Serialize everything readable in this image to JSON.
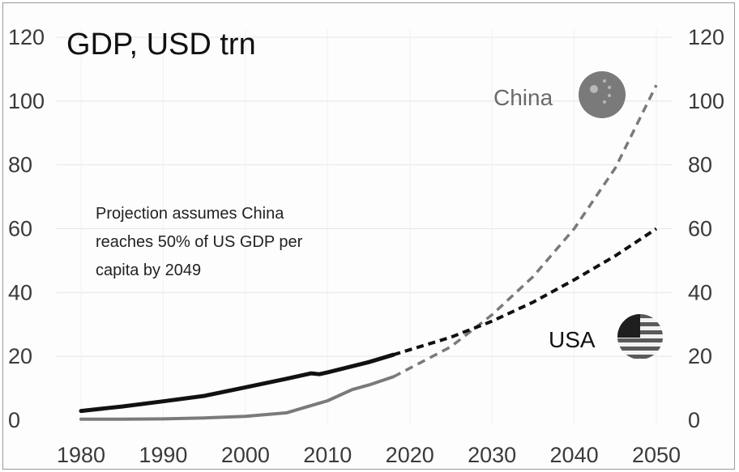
{
  "chart_data": {
    "type": "line",
    "title": "GDP, USD trn",
    "xlim": [
      1980,
      2050
    ],
    "ylim": [
      0,
      120
    ],
    "x_ticks": [
      "1980",
      "1990",
      "2000",
      "2010",
      "2020",
      "2030",
      "2040",
      "2050"
    ],
    "y_ticks": [
      "0",
      "20",
      "40",
      "60",
      "80",
      "100",
      "120"
    ],
    "grid": true,
    "annotation": [
      "Projection assumes China",
      "reaches 50% of US GDP per",
      "capita by 2049"
    ],
    "series": [
      {
        "name": "USA",
        "color": "#111111",
        "actual": [
          [
            1980,
            2.9
          ],
          [
            1985,
            4.3
          ],
          [
            1990,
            5.9
          ],
          [
            1995,
            7.6
          ],
          [
            2000,
            10.3
          ],
          [
            2005,
            13.0
          ],
          [
            2008,
            14.7
          ],
          [
            2009,
            14.4
          ],
          [
            2010,
            15.0
          ],
          [
            2015,
            18.2
          ],
          [
            2018,
            20.5
          ]
        ],
        "projection": [
          [
            2018,
            20.5
          ],
          [
            2025,
            26.0
          ],
          [
            2030,
            31.0
          ],
          [
            2035,
            37.0
          ],
          [
            2040,
            44.0
          ],
          [
            2045,
            51.5
          ],
          [
            2050,
            60.0
          ]
        ]
      },
      {
        "name": "China",
        "color": "#7a7a7a",
        "actual": [
          [
            1980,
            0.3
          ],
          [
            1985,
            0.3
          ],
          [
            1990,
            0.4
          ],
          [
            1995,
            0.7
          ],
          [
            2000,
            1.2
          ],
          [
            2005,
            2.3
          ],
          [
            2008,
            4.6
          ],
          [
            2010,
            6.1
          ],
          [
            2013,
            9.6
          ],
          [
            2015,
            11.0
          ],
          [
            2018,
            13.6
          ]
        ],
        "projection": [
          [
            2018,
            13.6
          ],
          [
            2025,
            23.0
          ],
          [
            2030,
            33.0
          ],
          [
            2035,
            45.0
          ],
          [
            2040,
            60.0
          ],
          [
            2045,
            79.0
          ],
          [
            2050,
            105.0
          ]
        ]
      }
    ],
    "flags": [
      {
        "country": "China",
        "icon": "china-flag-icon",
        "color": "#7a7a7a"
      },
      {
        "country": "USA",
        "icon": "usa-flag-icon",
        "color": "#3a3a3a"
      }
    ]
  }
}
